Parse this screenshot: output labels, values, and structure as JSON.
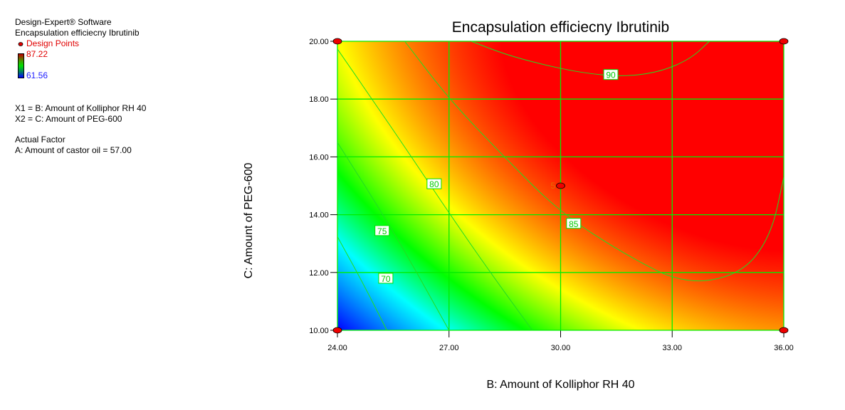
{
  "info": {
    "software": "Design-Expert® Software",
    "response": "Encapsulation efficiecny Ibrutinib",
    "design_points_label": "Design Points",
    "scale_max": "87.22",
    "scale_min": "61.56",
    "x1": "X1 = B: Amount of Kolliphor RH 40",
    "x2": "X2 = C: Amount of PEG-600",
    "actual_factor_heading": "Actual Factor",
    "actual_factor": "A: Amount of castor oil = 57.00"
  },
  "chart_data": {
    "type": "heatmap",
    "subtype": "contour",
    "title": "Encapsulation efficiecny Ibrutinib",
    "xlabel": "B: Amount of Kolliphor RH 40",
    "ylabel": "C: Amount of PEG-600",
    "xlim": [
      24,
      36
    ],
    "ylim": [
      10,
      20
    ],
    "xticks": [
      "24.00",
      "27.00",
      "30.00",
      "33.00",
      "36.00"
    ],
    "yticks": [
      "10.00",
      "12.00",
      "14.00",
      "16.00",
      "18.00",
      "20.00"
    ],
    "grid": true,
    "color_scale": {
      "min": 61.56,
      "max": 87.22,
      "colors": [
        "#0000ff",
        "#00ffff",
        "#00ff00",
        "#ffff00",
        "#ff0000"
      ]
    },
    "contours": [
      {
        "level": "70",
        "points": [
          [
            24,
            13.24
          ],
          [
            24.7,
            11.6
          ],
          [
            25.33,
            10
          ]
        ],
        "label_at": [
          25.3,
          11.8
        ]
      },
      {
        "level": "75",
        "points": [
          [
            24,
            16.5
          ],
          [
            25.5,
            13.45
          ],
          [
            27.0,
            10
          ]
        ],
        "label_at": [
          25.2,
          13.45
        ]
      },
      {
        "level": "80",
        "points": [
          [
            24,
            19.73
          ],
          [
            24.93,
            18.0
          ],
          [
            25.98,
            16.02
          ],
          [
            27.0,
            14.06
          ],
          [
            28.11,
            12.0
          ],
          [
            29.24,
            10
          ]
        ],
        "label_at": [
          26.6,
          15.07
        ]
      },
      {
        "level": "85",
        "points": [
          [
            25.81,
            20
          ],
          [
            27.0,
            18.0
          ],
          [
            28.48,
            16.0
          ],
          [
            30.0,
            14.06
          ],
          [
            31.78,
            12.58
          ],
          [
            33.35,
            11.58
          ],
          [
            34.85,
            11.93
          ],
          [
            35.65,
            13.24
          ],
          [
            36,
            15.29
          ]
        ],
        "label_at": [
          30.35,
          13.7
        ]
      },
      {
        "level": "90",
        "points": [
          [
            27.6,
            20
          ],
          [
            28.5,
            19.55
          ],
          [
            29.5,
            19.2
          ],
          [
            30.6,
            18.9
          ],
          [
            31.7,
            18.77
          ],
          [
            32.7,
            18.95
          ],
          [
            33.5,
            19.4
          ],
          [
            34.0,
            20
          ]
        ],
        "label_at": [
          31.35,
          18.85
        ]
      }
    ],
    "design_points": [
      {
        "x": 24,
        "y": 20
      },
      {
        "x": 36,
        "y": 20
      },
      {
        "x": 24,
        "y": 10
      },
      {
        "x": 36,
        "y": 10
      },
      {
        "x": 30,
        "y": 15,
        "count": "5"
      }
    ]
  }
}
